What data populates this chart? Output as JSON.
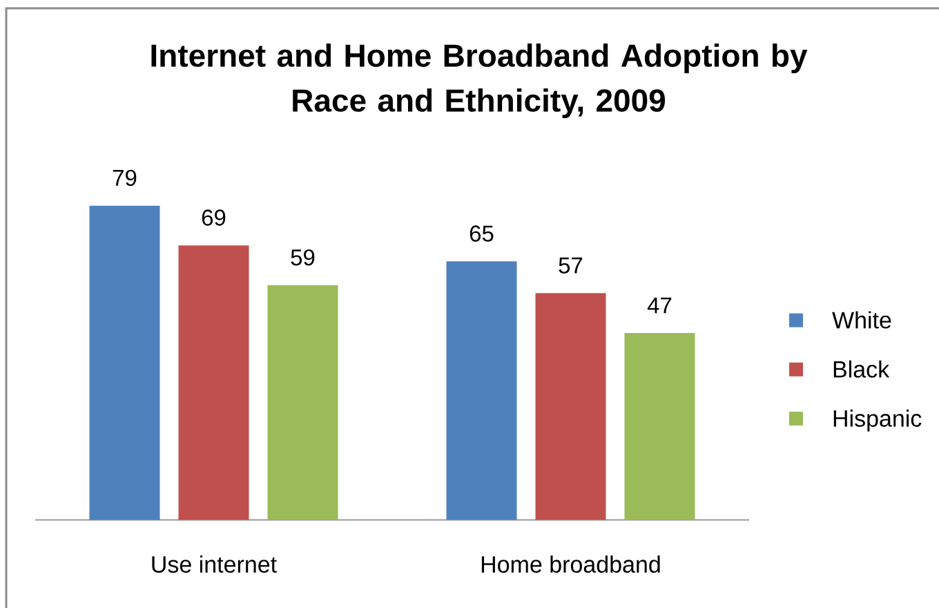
{
  "chart_data": {
    "type": "bar",
    "title": "Internet and Home Broadband Adoption by Race and Ethnicity, 2009",
    "categories": [
      "Use internet",
      "Home broadband"
    ],
    "series": [
      {
        "name": "White",
        "color": "#4f81bd",
        "values": [
          79,
          65
        ]
      },
      {
        "name": "Black",
        "color": "#c0504d",
        "values": [
          69,
          57
        ]
      },
      {
        "name": "Hispanic",
        "color": "#9bbb59",
        "values": [
          59,
          47
        ]
      }
    ],
    "data_labels": true,
    "legend": "right"
  }
}
